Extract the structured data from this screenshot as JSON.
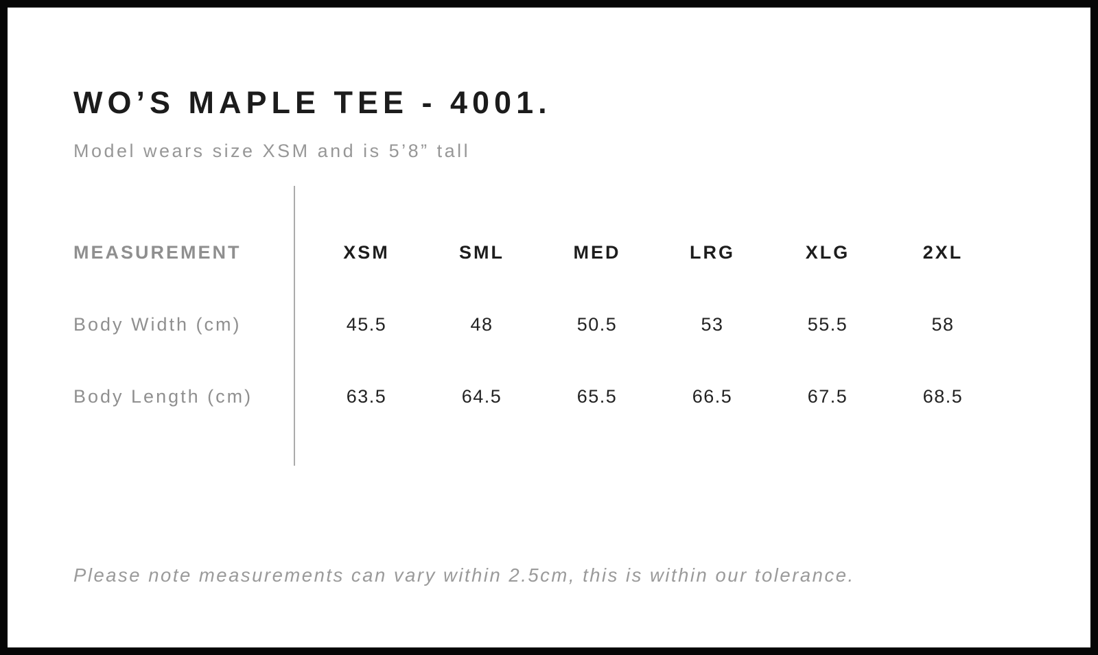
{
  "header": {
    "title": "WO’S MAPLE TEE - 4001.",
    "subtitle": "Model wears size XSM and is 5’8” tall"
  },
  "chart_data": {
    "type": "table",
    "title": "WO’S MAPLE TEE - 4001.",
    "columns": [
      "MEASUREMENT",
      "XSM",
      "SML",
      "MED",
      "LRG",
      "XLG",
      "2XL"
    ],
    "rows": [
      {
        "label": "Body Width (cm)",
        "values": [
          "45.5",
          "48",
          "50.5",
          "53",
          "55.5",
          "58"
        ]
      },
      {
        "label": "Body Length (cm)",
        "values": [
          "63.5",
          "64.5",
          "65.5",
          "66.5",
          "67.5",
          "68.5"
        ]
      }
    ]
  },
  "footer": {
    "note": "Please note measurements can vary within 2.5cm, this is within our tolerance."
  },
  "colors": {
    "text_dark": "#1d1d1d",
    "text_gray": "#8f8f8f",
    "divider": "#ababab",
    "border": "#060606",
    "background": "#ffffff"
  }
}
